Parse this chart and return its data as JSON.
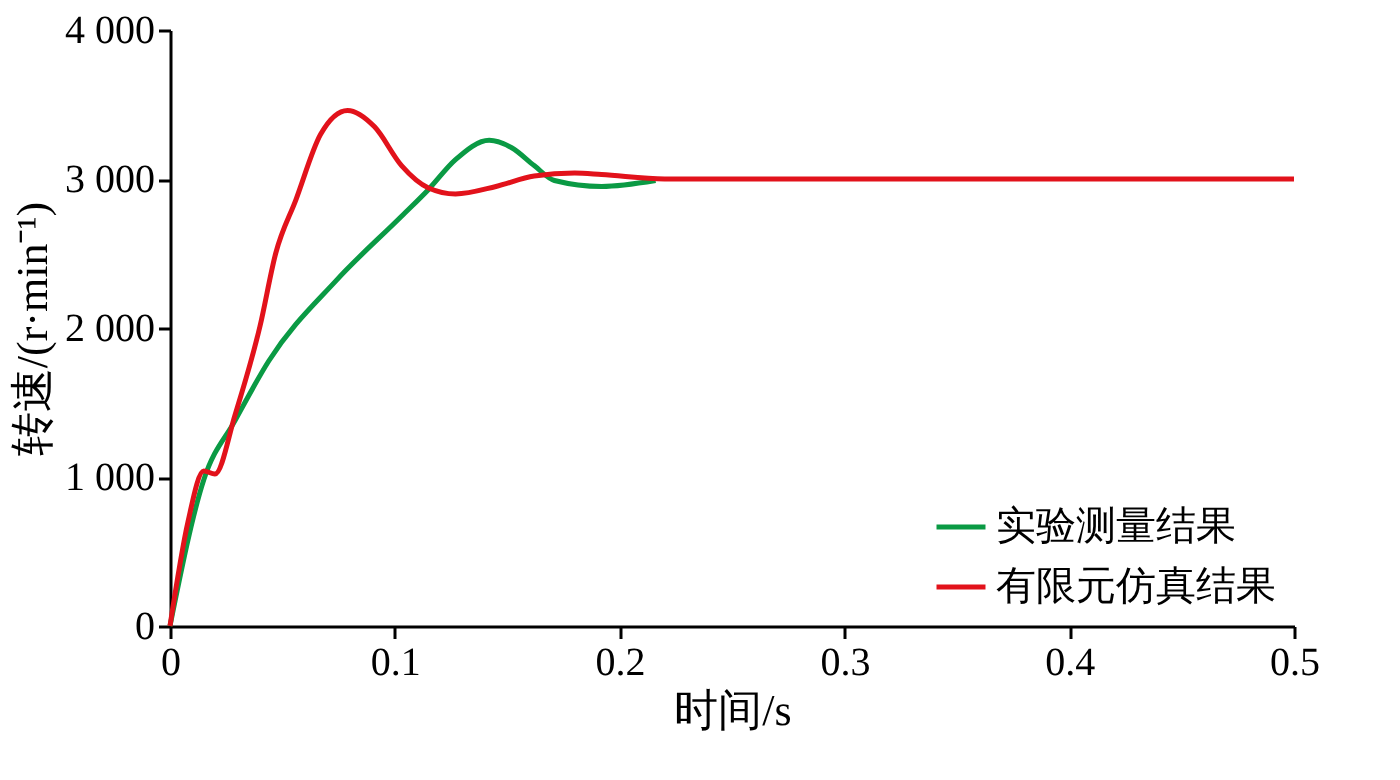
{
  "chart_data": {
    "type": "line",
    "xlabel": "时间/s",
    "ylabel": "转速/(r·min⁻¹)",
    "xlim": [
      0,
      0.5
    ],
    "xticks": [
      0,
      0.1,
      0.2,
      0.3,
      0.4,
      0.5
    ],
    "ylim": [
      0,
      4000
    ],
    "yticks": [
      0,
      {
        "value": 1000,
        "label": "1 000"
      },
      {
        "value": 2000,
        "label": "2 000"
      },
      {
        "value": 3000,
        "label": "3 000"
      },
      {
        "value": 4000,
        "label": "4 000"
      }
    ],
    "grid": false,
    "legend": "bottom right",
    "marker": "none",
    "line_style": "solid",
    "series": [
      {
        "name": "实验测量结果",
        "color": "#0a9a44",
        "x": [
          0,
          0.015,
          0.029,
          0.044,
          0.074,
          0.103,
          0.115,
          0.127,
          0.142,
          0.152,
          0.162,
          0.171,
          0.192,
          0.216
        ],
        "values": [
          0,
          980,
          1380,
          1780,
          2320,
          2750,
          2930,
          3130,
          3260,
          3210,
          3090,
          2990,
          2950,
          2990
        ]
      },
      {
        "name": "有限元仿真结果",
        "color": "#e2121b",
        "x": [
          0,
          0.008,
          0.015,
          0.02,
          0.029,
          0.04,
          0.047,
          0.056,
          0.067,
          0.079,
          0.091,
          0.103,
          0.115,
          0.127,
          0.145,
          0.162,
          0.18,
          0.192,
          0.22,
          0.3,
          0.4,
          0.5
        ],
        "values": [
          0,
          700,
          1040,
          1020,
          1420,
          2010,
          2500,
          2860,
          3300,
          3460,
          3350,
          3090,
          2940,
          2900,
          2950,
          3020,
          3040,
          3030,
          3000,
          3000,
          3000,
          3000
        ]
      }
    ]
  }
}
